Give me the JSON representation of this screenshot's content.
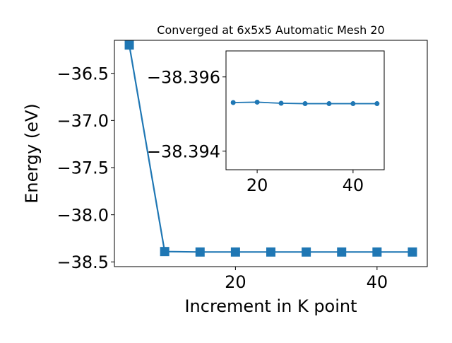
{
  "chart_data": [
    {
      "type": "line",
      "title": "Converged at 6x5x5 Automatic Mesh 20",
      "xlabel": "Increment in K point",
      "ylabel": "Energy (eV)",
      "xlim": [
        2.9,
        47.1
      ],
      "ylim": [
        -38.55,
        -36.15
      ],
      "xticks": [
        20,
        40
      ],
      "xtick_labels": [
        "20",
        "40"
      ],
      "yticks": [
        -36.5,
        -37.0,
        -37.5,
        -38.0,
        -38.5
      ],
      "ytick_labels": [
        "−36.5",
        "−37.0",
        "−37.5",
        "−38.0",
        "−38.5"
      ],
      "marker": "square",
      "color": "#1f77b4",
      "x": [
        5,
        10,
        15,
        20,
        25,
        30,
        35,
        40,
        45
      ],
      "y": [
        -36.2,
        -38.39,
        -38.395,
        -38.395,
        -38.395,
        -38.395,
        -38.395,
        -38.395,
        -38.395
      ]
    },
    {
      "type": "line",
      "title": "",
      "xlabel": "",
      "ylabel": "",
      "xlim": [
        13.5,
        46.5
      ],
      "ylim": [
        -38.3967,
        -38.3935
      ],
      "xticks": [
        20,
        40
      ],
      "xtick_labels": [
        "20",
        "40"
      ],
      "yticks": [
        -38.396,
        -38.394
      ],
      "ytick_labels": [
        "−38.396",
        "−38.394"
      ],
      "y_inverted": true,
      "marker": "circle",
      "color": "#1f77b4",
      "x": [
        15,
        20,
        25,
        30,
        35,
        40,
        45
      ],
      "y": [
        -38.39531,
        -38.39532,
        -38.39529,
        -38.39528,
        -38.39528,
        -38.39528,
        -38.39528
      ]
    }
  ]
}
